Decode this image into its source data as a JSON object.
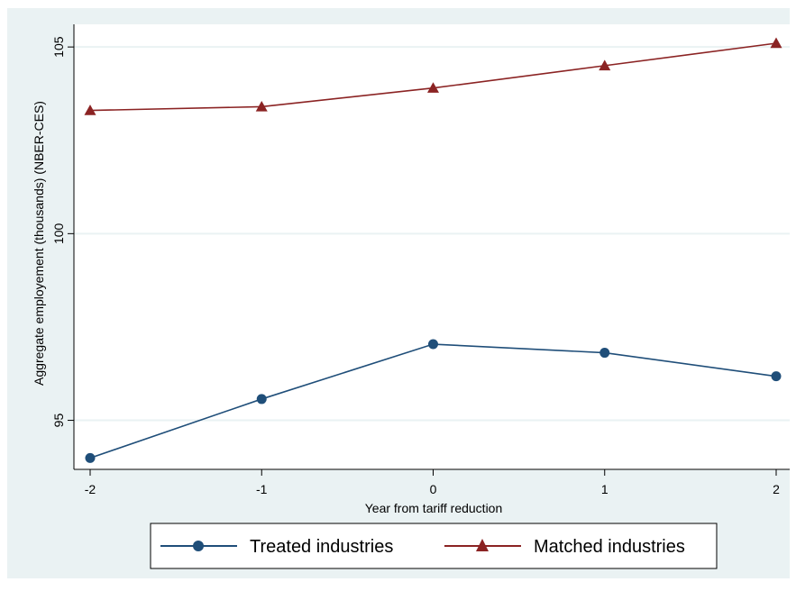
{
  "chart_data": {
    "type": "line",
    "title": "",
    "xlabel": "Year from tariff reduction",
    "ylabel": "Aggregate employement (thousands) (NBER-CES)",
    "x": [
      -2,
      -1,
      0,
      1,
      2
    ],
    "x_ticks": [
      "-2",
      "-1",
      "0",
      "1",
      "2"
    ],
    "y_ticks": [
      "95",
      "100",
      "105"
    ],
    "y_tick_values": [
      95,
      100,
      105
    ],
    "xlim": [
      -2,
      2
    ],
    "ylim": [
      94,
      105.1
    ],
    "grid": true,
    "legend_position": "bottom",
    "series": [
      {
        "name": "Treated industries",
        "values": [
          93.99,
          95.57,
          97.04,
          96.81,
          96.18
        ],
        "color": "#1f4e79",
        "marker": "circle"
      },
      {
        "name": "Matched industries",
        "values": [
          103.3,
          103.4,
          103.9,
          104.5,
          105.1
        ],
        "color": "#8b2323",
        "marker": "triangle"
      }
    ]
  },
  "colors": {
    "outer_background": "#eaf2f3",
    "plot_background": "#ffffff",
    "grid": "#eaf2f3"
  }
}
